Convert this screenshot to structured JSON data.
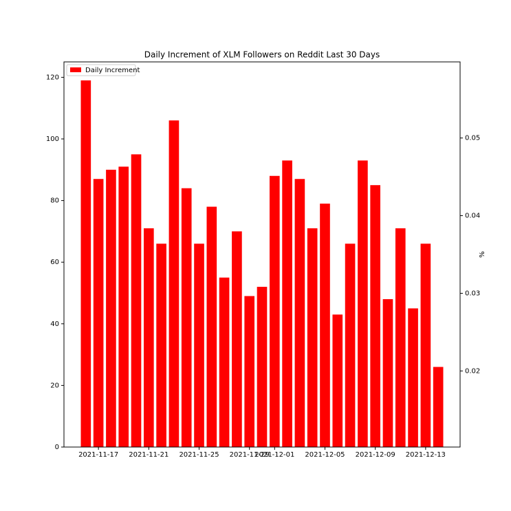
{
  "chart_data": {
    "type": "bar",
    "title": "Daily Increment of XLM Followers on Reddit Last 30 Days",
    "x": [
      "2021-11-16",
      "2021-11-17",
      "2021-11-18",
      "2021-11-19",
      "2021-11-20",
      "2021-11-21",
      "2021-11-22",
      "2021-11-23",
      "2021-11-24",
      "2021-11-25",
      "2021-11-26",
      "2021-11-27",
      "2021-11-28",
      "2021-11-29",
      "2021-11-30",
      "2021-12-01",
      "2021-12-02",
      "2021-12-03",
      "2021-12-04",
      "2021-12-05",
      "2021-12-06",
      "2021-12-07",
      "2021-12-08",
      "2021-12-09",
      "2021-12-10",
      "2021-12-11",
      "2021-12-12",
      "2021-12-13",
      "2021-12-14"
    ],
    "series": [
      {
        "name": "Daily Increment",
        "color": "#ff0000",
        "values": [
          119,
          87,
          90,
          91,
          95,
          71,
          66,
          106,
          84,
          66,
          78,
          55,
          70,
          49,
          52,
          88,
          93,
          87,
          71,
          79,
          43,
          66,
          93,
          85,
          48,
          71,
          45,
          66,
          26
        ]
      }
    ],
    "xticks": [
      "2021-11-17",
      "2021-11-21",
      "2021-11-25",
      "2021-11-29",
      "2021-12-01",
      "2021-12-05",
      "2021-12-09",
      "2021-12-13"
    ],
    "ylim": [
      0,
      125
    ],
    "yticks": [
      0,
      20,
      40,
      60,
      80,
      100,
      120
    ],
    "y2label": "%",
    "y2lim": [
      0.0102,
      0.0598
    ],
    "y2ticks": [
      0.02,
      0.03,
      0.04,
      0.05
    ],
    "legend": "upper left"
  }
}
